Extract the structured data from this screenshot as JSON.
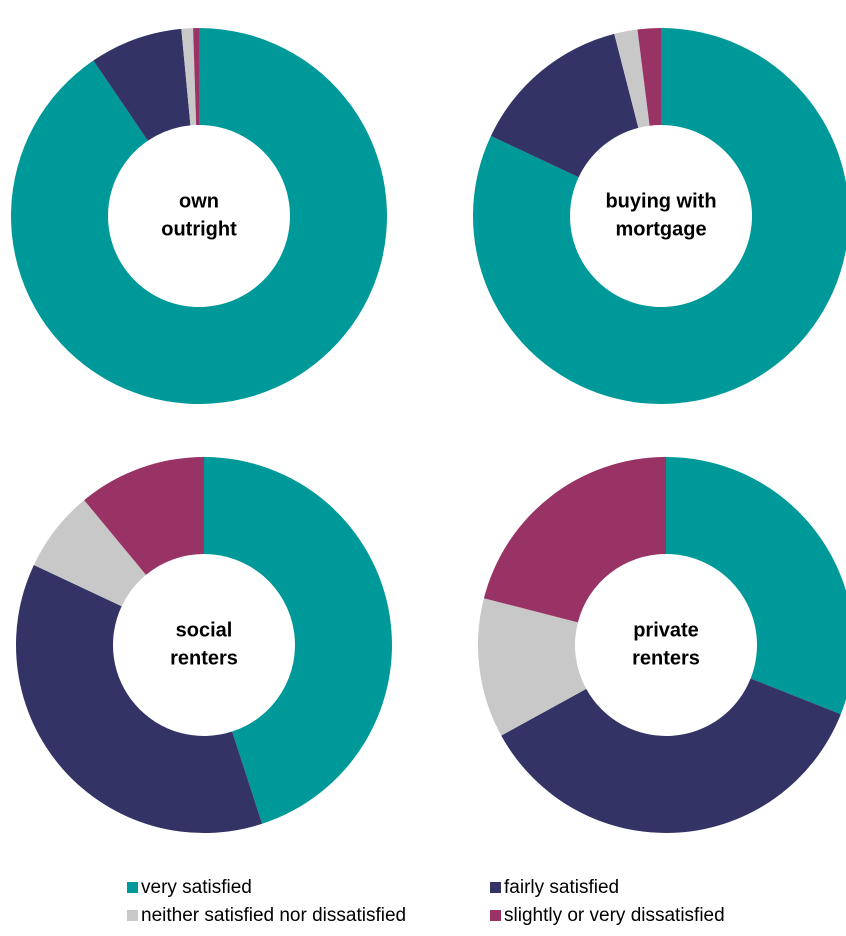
{
  "legend": {
    "labels": [
      "very satisfied",
      "fairly satisfied",
      "neither satisfied nor dissatisfied",
      "slightly or very dissatisfied"
    ],
    "colors": [
      "#009999",
      "#333366",
      "#c8c8c8",
      "#993366"
    ]
  },
  "chart_data": [
    {
      "type": "donut",
      "title": [
        "own",
        "outright"
      ],
      "values": [
        90.5,
        8,
        1,
        0.5
      ]
    },
    {
      "type": "donut",
      "title": [
        "buying with",
        "mortgage"
      ],
      "values": [
        82,
        14,
        2,
        2
      ]
    },
    {
      "type": "donut",
      "title": [
        "social",
        "renters"
      ],
      "values": [
        45,
        37,
        7,
        11
      ]
    },
    {
      "type": "donut",
      "title": [
        "private",
        "renters"
      ],
      "values": [
        31,
        36,
        12,
        21
      ]
    }
  ]
}
